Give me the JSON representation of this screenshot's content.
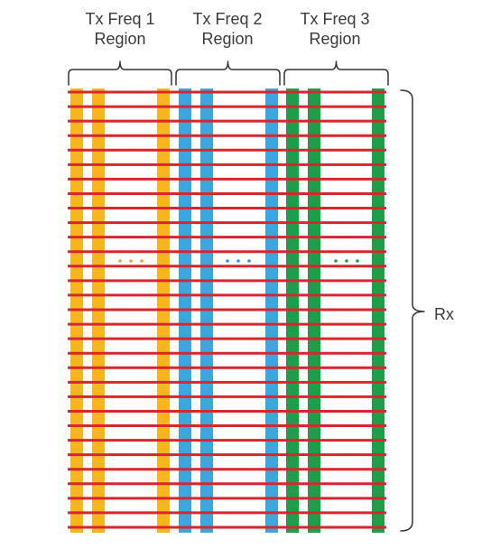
{
  "colors": {
    "rx_line": "#d7262d",
    "bracket": "#333333",
    "background": "#ffffff"
  },
  "regions": [
    {
      "title_line1": "Tx Freq 1",
      "title_line2": "Region",
      "color": "#f9b51c",
      "ellipsis_color": "#e8a33a"
    },
    {
      "title_line1": "Tx Freq 2",
      "title_line2": "Region",
      "color": "#3aa8df",
      "ellipsis_color": "#3a8fd4"
    },
    {
      "title_line1": "Tx Freq 3",
      "title_line2": "Region",
      "color": "#1d9f49",
      "ellipsis_color": "#1d9f49"
    }
  ],
  "rx": {
    "label": "Rx",
    "line_count": 31
  }
}
